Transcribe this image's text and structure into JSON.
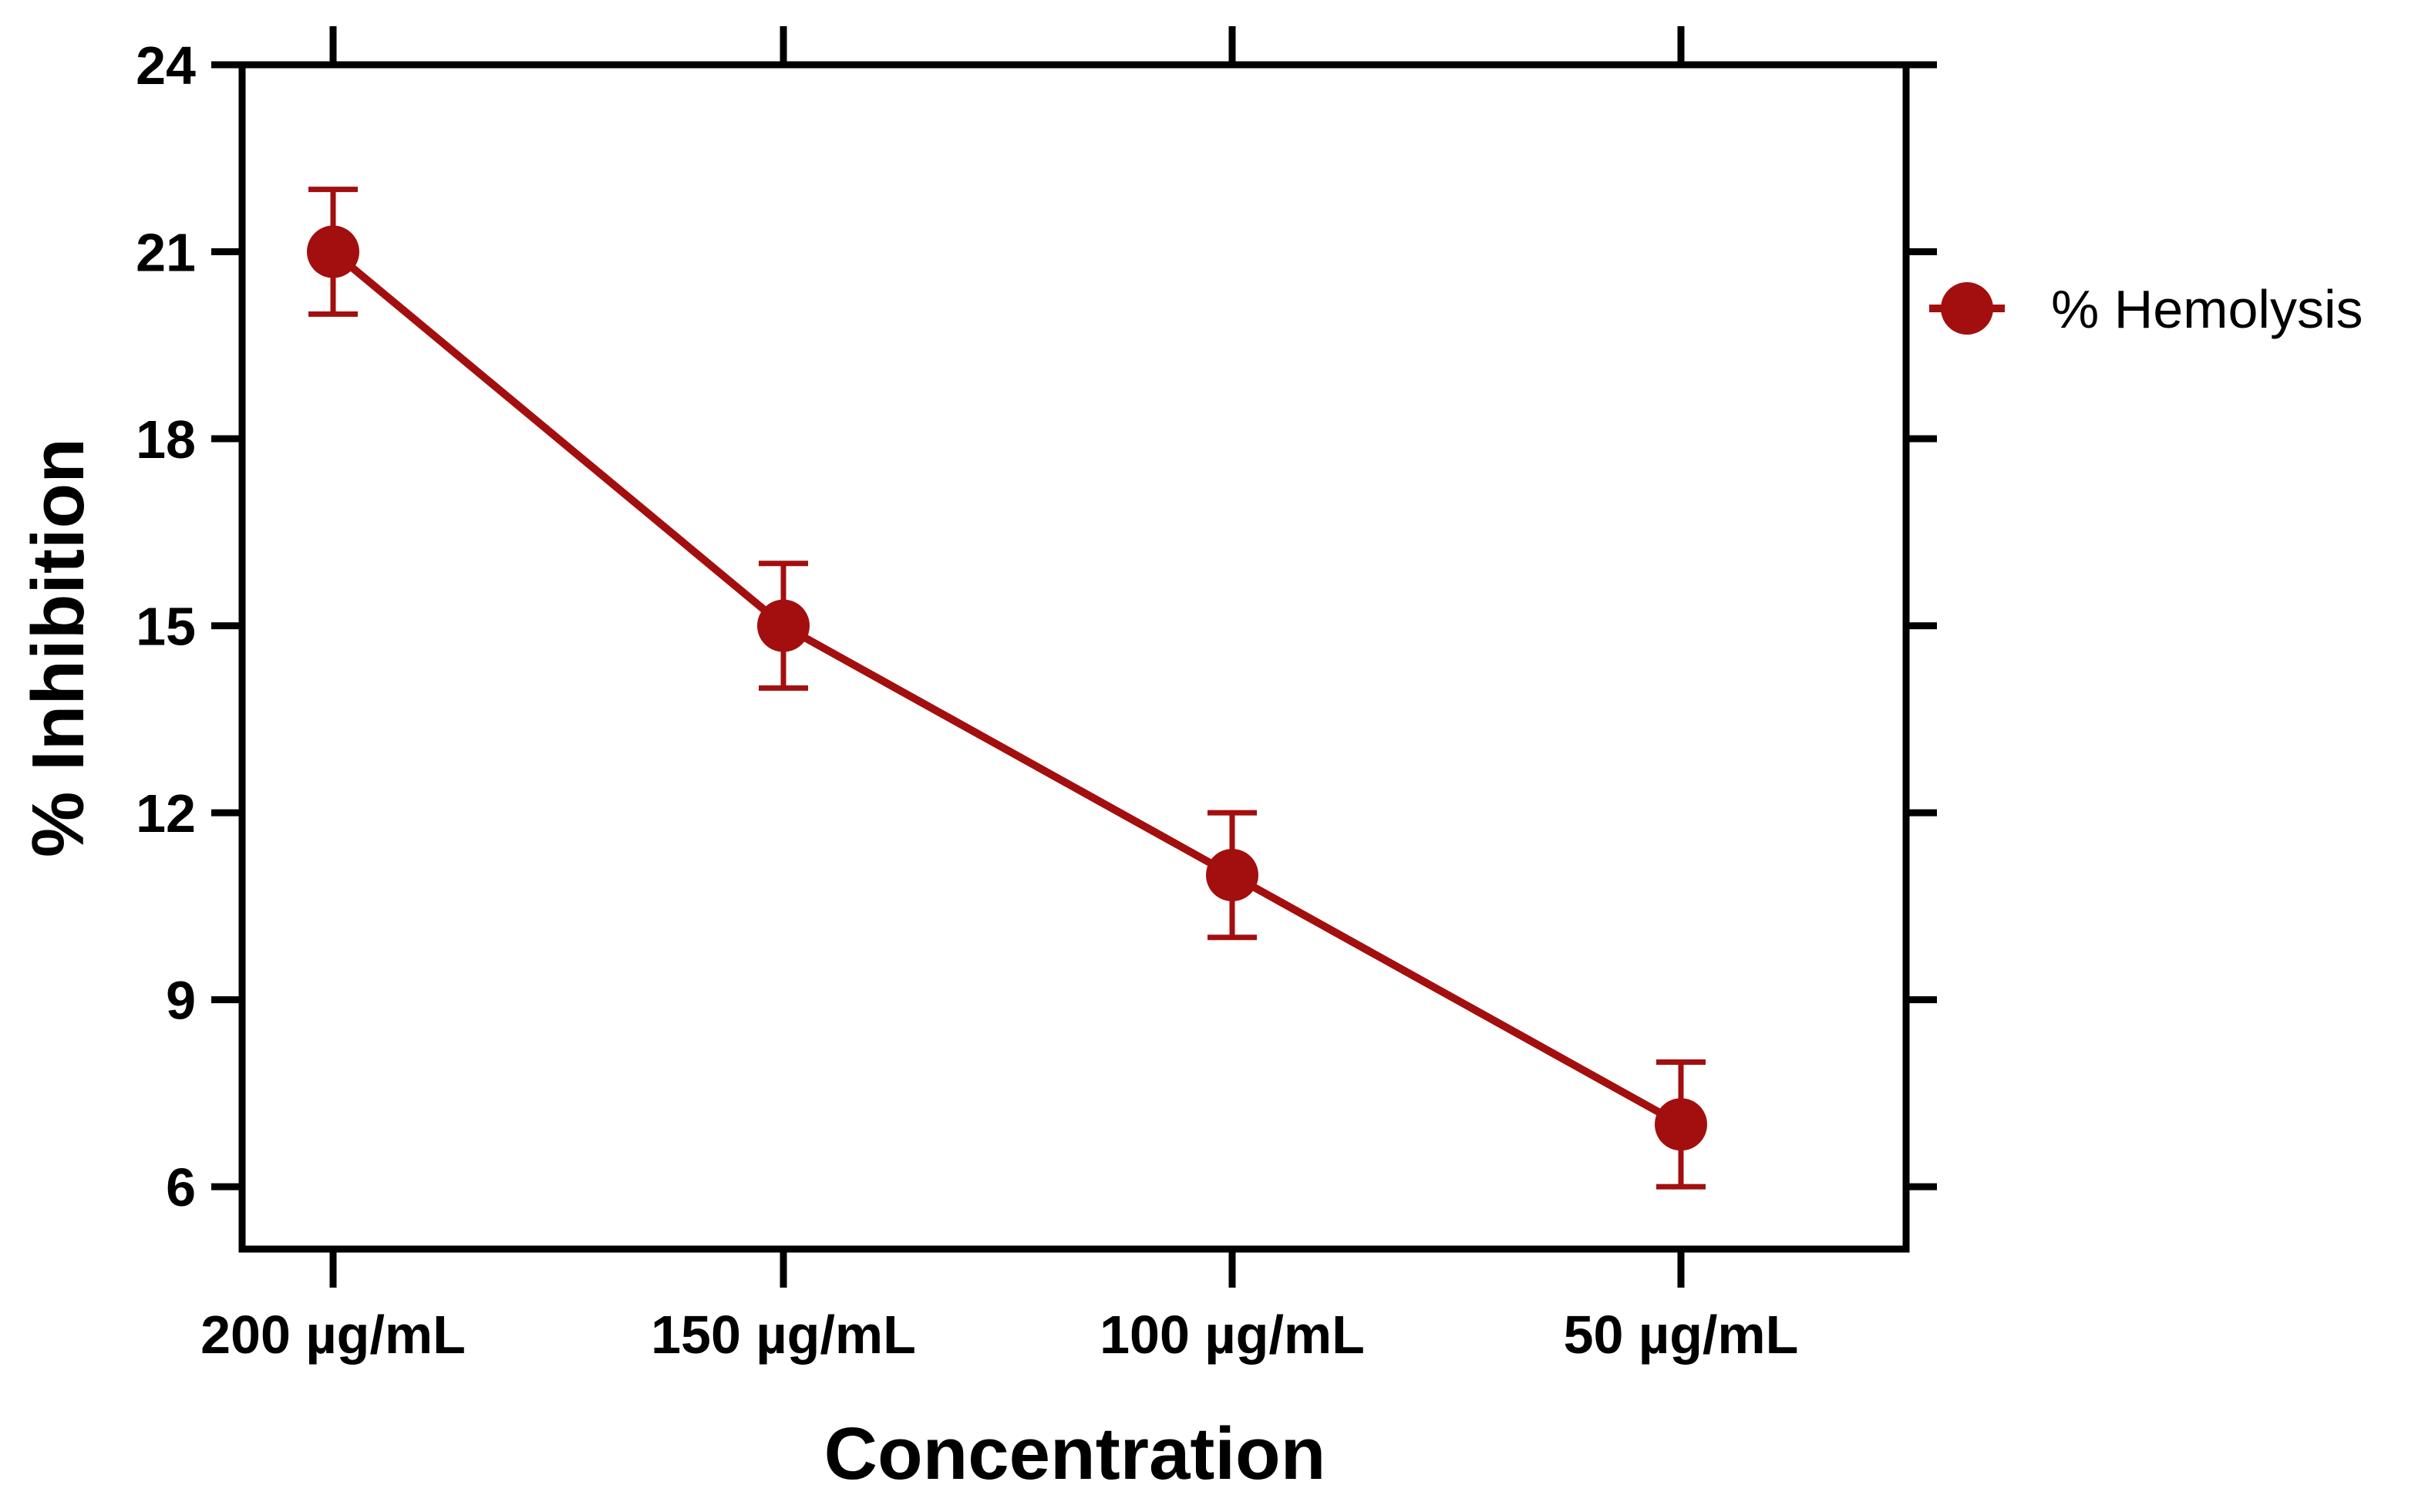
{
  "chart_data": {
    "type": "line",
    "categories": [
      "200 µg/mL",
      "150 µg/mL",
      "100  µg/mL",
      "50 µg/mL"
    ],
    "series": [
      {
        "name": "% Hemolysis",
        "values": [
          21,
          15,
          11,
          7
        ],
        "error": [
          1,
          1,
          1,
          1
        ],
        "color": "#a30f0f"
      }
    ],
    "xlabel": "Concentration",
    "ylabel": "% Inhibition",
    "ylim": [
      5,
      24
    ],
    "yticks": [
      6,
      9,
      12,
      15,
      18,
      21,
      24
    ],
    "grid": false,
    "legend_position": "right",
    "axis_color": "#000000"
  }
}
